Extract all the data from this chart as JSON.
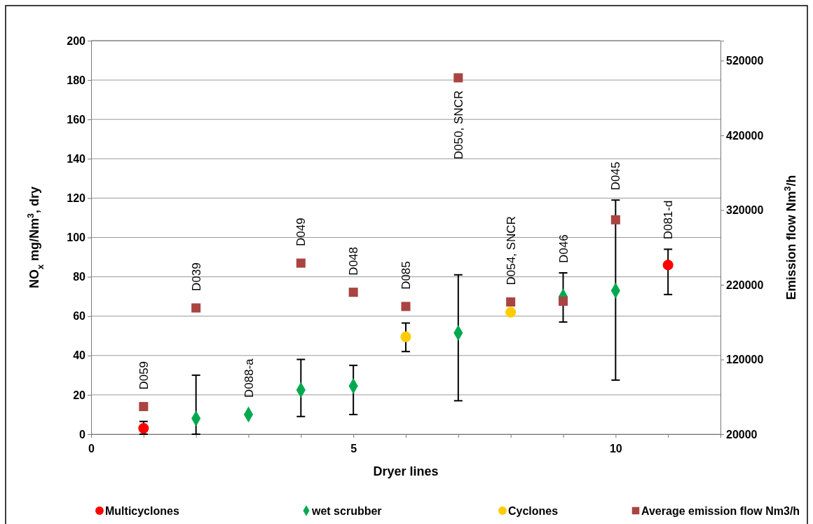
{
  "chart_data": {
    "type": "scatter",
    "xlabel": "Dryer lines",
    "ylabel": "NO$_{x}$ mg/Nm$^{3}$, dry",
    "y2label": "Emission flow Nm$^{3}$/h",
    "xlim": [
      0,
      12
    ],
    "xticks": [
      0,
      {
        "value": 1,
        "label": null
      },
      {
        "value": 2,
        "label": null
      },
      {
        "value": 3,
        "label": null
      },
      {
        "value": 4,
        "label": null
      },
      5,
      {
        "value": 6,
        "label": null
      },
      {
        "value": 7,
        "label": null
      },
      {
        "value": 8,
        "label": null
      },
      {
        "value": 9,
        "label": null
      },
      10,
      {
        "value": 11,
        "label": null
      },
      {
        "value": 12,
        "label": null
      }
    ],
    "ylim": [
      0,
      200
    ],
    "yticks": [
      0,
      20,
      40,
      60,
      80,
      100,
      120,
      140,
      160,
      180,
      200
    ],
    "y2lim": [
      20000,
      546700
    ],
    "y2ticks": [
      20000,
      120000,
      220000,
      320000,
      420000,
      520000
    ],
    "grid": "y",
    "legend": "bottom",
    "series": [
      {
        "name": "Multicyclones",
        "color": "#ff0000",
        "marker": "circle",
        "x": [
          1,
          11
        ],
        "values": [
          3,
          86
        ],
        "errors": [
          [
            0,
            6.5
          ],
          [
            71,
            94
          ]
        ]
      },
      {
        "name": "wet scrubber",
        "color": "#00a94f",
        "marker": "diamond",
        "x": [
          2,
          3,
          4,
          5,
          7,
          9,
          10
        ],
        "values": [
          8,
          10,
          22.5,
          24.5,
          51.5,
          70,
          73
        ],
        "errors": [
          [
            0,
            30
          ],
          null,
          [
            9,
            38
          ],
          [
            10,
            35
          ],
          [
            17,
            81
          ],
          [
            57,
            82
          ],
          [
            27.5,
            119
          ]
        ]
      },
      {
        "name": "Cyclones",
        "color": "#ffcc00",
        "marker": "circle",
        "x": [
          6,
          8
        ],
        "values": [
          49.5,
          62
        ],
        "errors": [
          [
            42,
            56.5
          ],
          null
        ]
      },
      {
        "name": "Average emission flow Nm3/h",
        "color": "#a94442",
        "marker": "square",
        "axis": "y2",
        "x": [
          1,
          2,
          4,
          5,
          6,
          7,
          8,
          9,
          10
        ],
        "values": [
          57000,
          189000,
          249000,
          210000,
          191000,
          497000,
          197000,
          198000,
          307000
        ]
      }
    ],
    "annotations": [
      "D059",
      "D039",
      "D088-a",
      "D049",
      "D048",
      "D085",
      "D050, SNCR",
      "D054, SNCR",
      "D046",
      "D045",
      "D081-d"
    ]
  }
}
